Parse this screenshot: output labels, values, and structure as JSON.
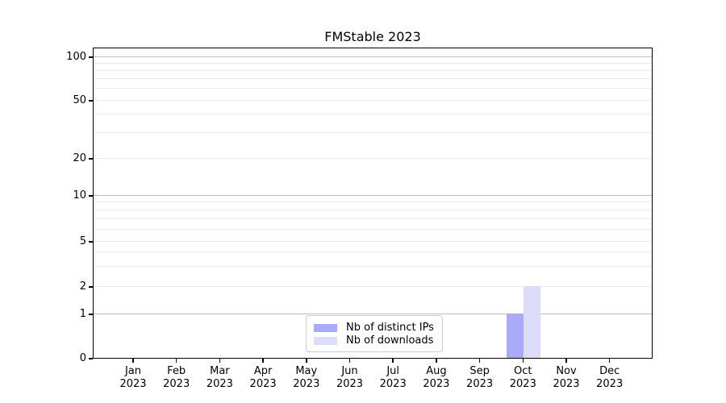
{
  "window": {
    "title": "FMStable 2023"
  },
  "chart_data": {
    "type": "bar",
    "title": "FMStable 2023",
    "categories": [
      {
        "month": "Jan",
        "year": "2023"
      },
      {
        "month": "Feb",
        "year": "2023"
      },
      {
        "month": "Mar",
        "year": "2023"
      },
      {
        "month": "Apr",
        "year": "2023"
      },
      {
        "month": "May",
        "year": "2023"
      },
      {
        "month": "Jun",
        "year": "2023"
      },
      {
        "month": "Jul",
        "year": "2023"
      },
      {
        "month": "Aug",
        "year": "2023"
      },
      {
        "month": "Sep",
        "year": "2023"
      },
      {
        "month": "Oct",
        "year": "2023"
      },
      {
        "month": "Nov",
        "year": "2023"
      },
      {
        "month": "Dec",
        "year": "2023"
      }
    ],
    "series": [
      {
        "name": "Nb of distinct IPs",
        "color": "#a9aaf8",
        "values": [
          0,
          0,
          0,
          0,
          0,
          0,
          0,
          0,
          0,
          1,
          0,
          0
        ]
      },
      {
        "name": "Nb of downloads",
        "color": "#dcddfa",
        "values": [
          0,
          0,
          0,
          0,
          0,
          0,
          0,
          0,
          0,
          2,
          0,
          0
        ]
      }
    ],
    "y_axis": {
      "scale": "log-like",
      "tick_labels": [
        "0",
        "1",
        "2",
        "5",
        "10",
        "20",
        "50",
        "100"
      ],
      "tick_values": [
        0,
        1,
        2,
        5,
        10,
        20,
        50,
        100
      ],
      "decade_ticks": [
        1,
        10,
        100
      ],
      "minor_ticks": [
        3,
        4,
        6,
        7,
        8,
        9,
        30,
        40,
        60,
        70,
        80,
        90
      ]
    },
    "legend": {
      "position": "lower center"
    },
    "grid": {
      "major_color": "#bdbdbd",
      "minor_color": "#e9e9e9",
      "orientation": "horizontal"
    },
    "xlabel": "",
    "ylabel": ""
  }
}
